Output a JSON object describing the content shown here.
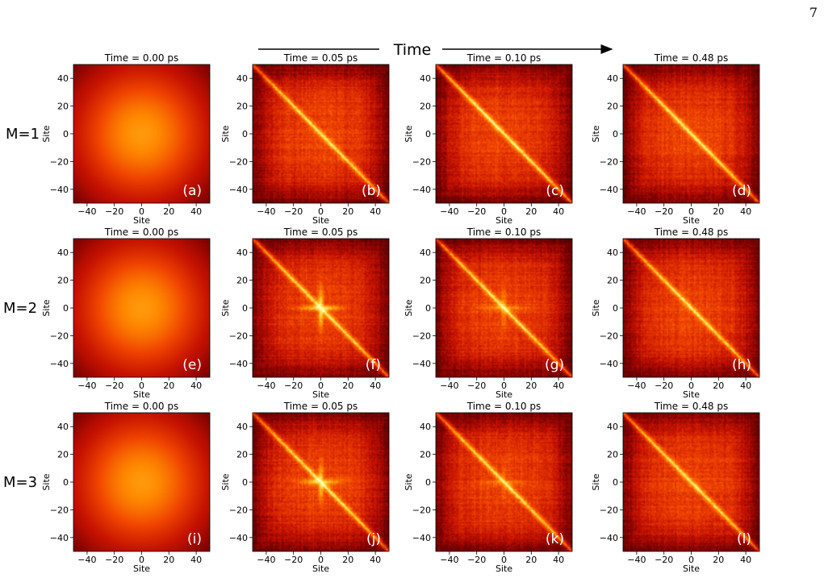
{
  "page_number": "7",
  "time_banner": "Time",
  "row_labels": [
    "M=1",
    "M=2",
    "M=3"
  ],
  "colormap": [
    "#3a0000",
    "#7a0000",
    "#c41200",
    "#f04400",
    "#ff8a00",
    "#ffd23a",
    "#ffffb0"
  ],
  "chart_data": [
    {
      "type": "heatmap",
      "panel": "(a)",
      "title": "Time  = 0.00 ps",
      "xlabel": "Site",
      "ylabel": "Site",
      "xlim": [
        -50,
        50
      ],
      "ylim": [
        -50,
        50
      ],
      "xticks": [
        -40,
        -20,
        0,
        20,
        40
      ],
      "yticks": [
        40,
        20,
        0,
        -20,
        -40
      ],
      "pattern": "gaussian",
      "diagonal": 0.0,
      "center_feature": 0.0
    },
    {
      "type": "heatmap",
      "panel": "(b)",
      "title": "Time  = 0.05 ps",
      "xlabel": "Site",
      "ylabel": "Site",
      "xlim": [
        -50,
        50
      ],
      "ylim": [
        -50,
        50
      ],
      "xticks": [
        -40,
        -20,
        0,
        20,
        40
      ],
      "yticks": [
        40,
        20,
        0,
        -20,
        -40
      ],
      "pattern": "diagonal",
      "diagonal": 0.85,
      "center_feature": 0.0
    },
    {
      "type": "heatmap",
      "panel": "(c)",
      "title": "Time  = 0.10 ps",
      "xlabel": "Site",
      "ylabel": "Site",
      "xlim": [
        -50,
        50
      ],
      "ylim": [
        -50,
        50
      ],
      "xticks": [
        -40,
        -20,
        0,
        20,
        40
      ],
      "yticks": [
        40,
        20,
        0,
        -20,
        -40
      ],
      "pattern": "diagonal",
      "diagonal": 0.95,
      "center_feature": 0.0
    },
    {
      "type": "heatmap",
      "panel": "(d)",
      "title": "Time  = 0.48 ps",
      "xlabel": "Site",
      "ylabel": "Site",
      "xlim": [
        -50,
        50
      ],
      "ylim": [
        -50,
        50
      ],
      "xticks": [
        -40,
        -20,
        0,
        20,
        40
      ],
      "yticks": [
        40,
        20,
        0,
        -20,
        -40
      ],
      "pattern": "diagonal",
      "diagonal": 0.9,
      "center_feature": 0.0
    },
    {
      "type": "heatmap",
      "panel": "(e)",
      "title": "Time  = 0.00 ps",
      "xlabel": "Site",
      "ylabel": "Site",
      "xlim": [
        -50,
        50
      ],
      "ylim": [
        -50,
        50
      ],
      "xticks": [
        -40,
        -20,
        0,
        20,
        40
      ],
      "yticks": [
        40,
        20,
        0,
        -20,
        -40
      ],
      "pattern": "gaussian",
      "diagonal": 0.0,
      "center_feature": 0.0
    },
    {
      "type": "heatmap",
      "panel": "(f)",
      "title": "Time  = 0.05 ps",
      "xlabel": "Site",
      "ylabel": "Site",
      "xlim": [
        -50,
        50
      ],
      "ylim": [
        -50,
        50
      ],
      "xticks": [
        -40,
        -20,
        0,
        20,
        40
      ],
      "yticks": [
        40,
        20,
        0,
        -20,
        -40
      ],
      "pattern": "diagonal",
      "diagonal": 0.85,
      "center_feature": 1.0
    },
    {
      "type": "heatmap",
      "panel": "(g)",
      "title": "Time  = 0.10 ps",
      "xlabel": "Site",
      "ylabel": "Site",
      "xlim": [
        -50,
        50
      ],
      "ylim": [
        -50,
        50
      ],
      "xticks": [
        -40,
        -20,
        0,
        20,
        40
      ],
      "yticks": [
        40,
        20,
        0,
        -20,
        -40
      ],
      "pattern": "diagonal",
      "diagonal": 0.85,
      "center_feature": 0.5
    },
    {
      "type": "heatmap",
      "panel": "(h)",
      "title": "Time  = 0.48 ps",
      "xlabel": "Site",
      "ylabel": "Site",
      "xlim": [
        -50,
        50
      ],
      "ylim": [
        -50,
        50
      ],
      "xticks": [
        -40,
        -20,
        0,
        20,
        40
      ],
      "yticks": [
        40,
        20,
        0,
        -20,
        -40
      ],
      "pattern": "diagonal",
      "diagonal": 0.85,
      "center_feature": 0.0
    },
    {
      "type": "heatmap",
      "panel": "(i)",
      "title": "Time  = 0.00 ps",
      "xlabel": "Site",
      "ylabel": "Site",
      "xlim": [
        -50,
        50
      ],
      "ylim": [
        -50,
        50
      ],
      "xticks": [
        -40,
        -20,
        0,
        20,
        40
      ],
      "yticks": [
        40,
        20,
        0,
        -20,
        -40
      ],
      "pattern": "gaussian",
      "diagonal": 0.0,
      "center_feature": 0.0
    },
    {
      "type": "heatmap",
      "panel": "(j)",
      "title": "Time  = 0.05 ps",
      "xlabel": "Site",
      "ylabel": "Site",
      "xlim": [
        -50,
        50
      ],
      "ylim": [
        -50,
        50
      ],
      "xticks": [
        -40,
        -20,
        0,
        20,
        40
      ],
      "yticks": [
        40,
        20,
        0,
        -20,
        -40
      ],
      "pattern": "diagonal",
      "diagonal": 0.85,
      "center_feature": 0.9
    },
    {
      "type": "heatmap",
      "panel": "(k)",
      "title": "Time  = 0.10 ps",
      "xlabel": "Site",
      "ylabel": "Site",
      "xlim": [
        -50,
        50
      ],
      "ylim": [
        -50,
        50
      ],
      "xticks": [
        -40,
        -20,
        0,
        20,
        40
      ],
      "yticks": [
        40,
        20,
        0,
        -20,
        -40
      ],
      "pattern": "diagonal",
      "diagonal": 0.85,
      "center_feature": 0.35
    },
    {
      "type": "heatmap",
      "panel": "(l)",
      "title": "Time  = 0.48 ps",
      "xlabel": "Site",
      "ylabel": "Site",
      "xlim": [
        -50,
        50
      ],
      "ylim": [
        -50,
        50
      ],
      "xticks": [
        -40,
        -20,
        0,
        20,
        40
      ],
      "yticks": [
        40,
        20,
        0,
        -20,
        -40
      ],
      "pattern": "diagonal",
      "diagonal": 0.85,
      "center_feature": 0.0
    }
  ]
}
